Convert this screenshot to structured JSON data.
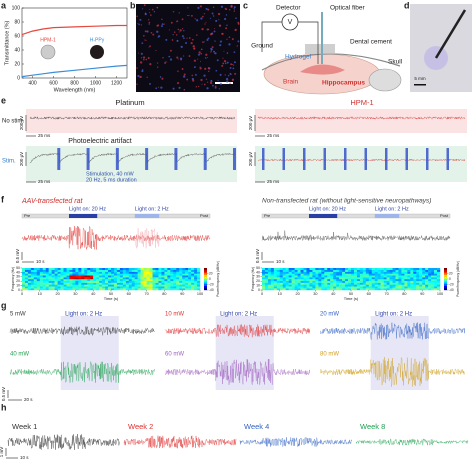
{
  "panel_labels": [
    "a",
    "b",
    "c",
    "d",
    "e",
    "f",
    "g",
    "h"
  ],
  "chart_data": {
    "type": "line",
    "xlabel": "Wavelength (nm)",
    "ylabel": "Transmittance (%)",
    "x": [
      300,
      400,
      500,
      600,
      800,
      1000,
      1200,
      1300
    ],
    "series": [
      {
        "name": "HPM-1",
        "color": "#e5483f",
        "values": [
          62,
          67,
          70,
          72,
          73,
          74,
          75,
          75
        ]
      },
      {
        "name": "H-PPy",
        "color": "#3b8ed6",
        "values": [
          2,
          4,
          6,
          8,
          11,
          14,
          17,
          18
        ]
      }
    ],
    "xlim": [
      300,
      1300
    ],
    "ylim": [
      0,
      100
    ],
    "xticks": [
      400,
      600,
      800,
      1000,
      1200
    ],
    "yticks": [
      0,
      20,
      40,
      60,
      80,
      100
    ]
  },
  "c": {
    "detector": "Detector",
    "meter": "V",
    "fiber": "Optical fiber",
    "ground": "Ground",
    "hydrogel": "Hydrogel",
    "cement": "Dental cement",
    "hippocampus": "Hippocampus",
    "skull": "Skull",
    "brain": "Brain"
  },
  "d": {
    "scale": "5 mm"
  },
  "e": {
    "left_title": "Platinum",
    "right_title": "HPM-1",
    "row1": "No stim.",
    "row2": "Stim.",
    "artifact": "Photoelectric artifact",
    "stim_note": [
      "Stimulation, 40 mW",
      "20 Hz, 5 ms duration"
    ],
    "time_scale": "25 ms",
    "volt_scale": "200 μV"
  },
  "f": {
    "left_title": "AAV-transfected rat",
    "right_title": "Non-transfected rat (without light-sensitive neuropathways)",
    "light1": "Light on: 20 Hz",
    "light2": "Light on: 2 Hz",
    "pre": "Pre",
    "post": "Post",
    "volt_scale": "0.5 mV",
    "time_scale": "10 s",
    "ylabel": "Frequency (Hz)",
    "xlabel": "Time (s)",
    "xticks": [
      0,
      10,
      20,
      30,
      40,
      50,
      60,
      70,
      80,
      90,
      100
    ],
    "yticks": [
      0,
      10,
      20,
      30,
      40,
      50
    ],
    "cbar_label": "Power/frequency (dB/Hz)",
    "cbar_ticks": [
      -40,
      -20,
      0,
      20
    ]
  },
  "g": {
    "powers": [
      "5 mW",
      "10 mW",
      "20 mW",
      "40 mW",
      "60 mW",
      "80 mW"
    ],
    "light": "Light on: 2 Hz",
    "volt_scale": "0.5 mV",
    "time_scale": "20 s"
  },
  "h": {
    "weeks": [
      "Week 1",
      "Week 2",
      "Week 4",
      "Week 8"
    ],
    "volt_scale": "1 mV",
    "time_scale": "10 s"
  }
}
